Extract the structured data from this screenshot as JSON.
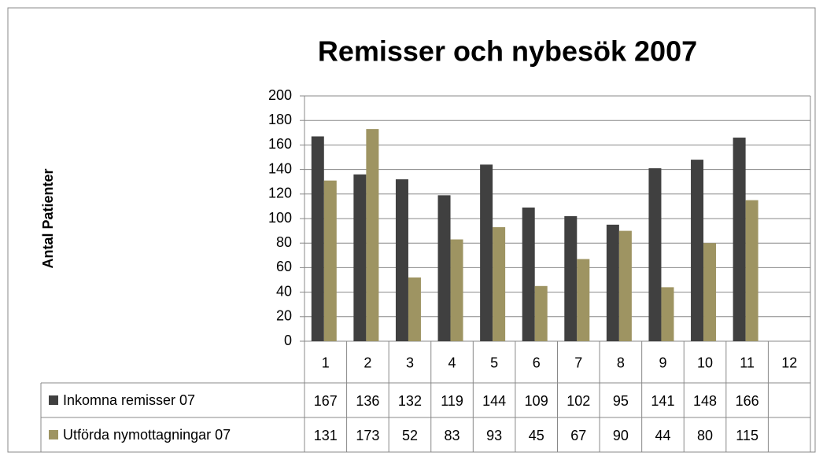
{
  "chart_data": {
    "type": "bar",
    "title": "Remisser och nybesök 2007",
    "y_label": "Antal Patienter",
    "categories": [
      "1",
      "2",
      "3",
      "4",
      "5",
      "6",
      "7",
      "8",
      "9",
      "10",
      "11",
      "12"
    ],
    "series": [
      {
        "name": "Inkomna remisser 07",
        "color": "#404040",
        "values": [
          167,
          136,
          132,
          119,
          144,
          109,
          102,
          95,
          141,
          148,
          166,
          null
        ]
      },
      {
        "name": "Utförda nymottagningar 07",
        "color": "#9e9462",
        "values": [
          131,
          173,
          52,
          83,
          93,
          45,
          67,
          90,
          44,
          80,
          115,
          null
        ]
      }
    ],
    "ylim": [
      0,
      200
    ],
    "yticks": [
      0,
      20,
      40,
      60,
      80,
      100,
      120,
      140,
      160,
      180,
      200
    ],
    "grid": true,
    "data_table": true
  }
}
